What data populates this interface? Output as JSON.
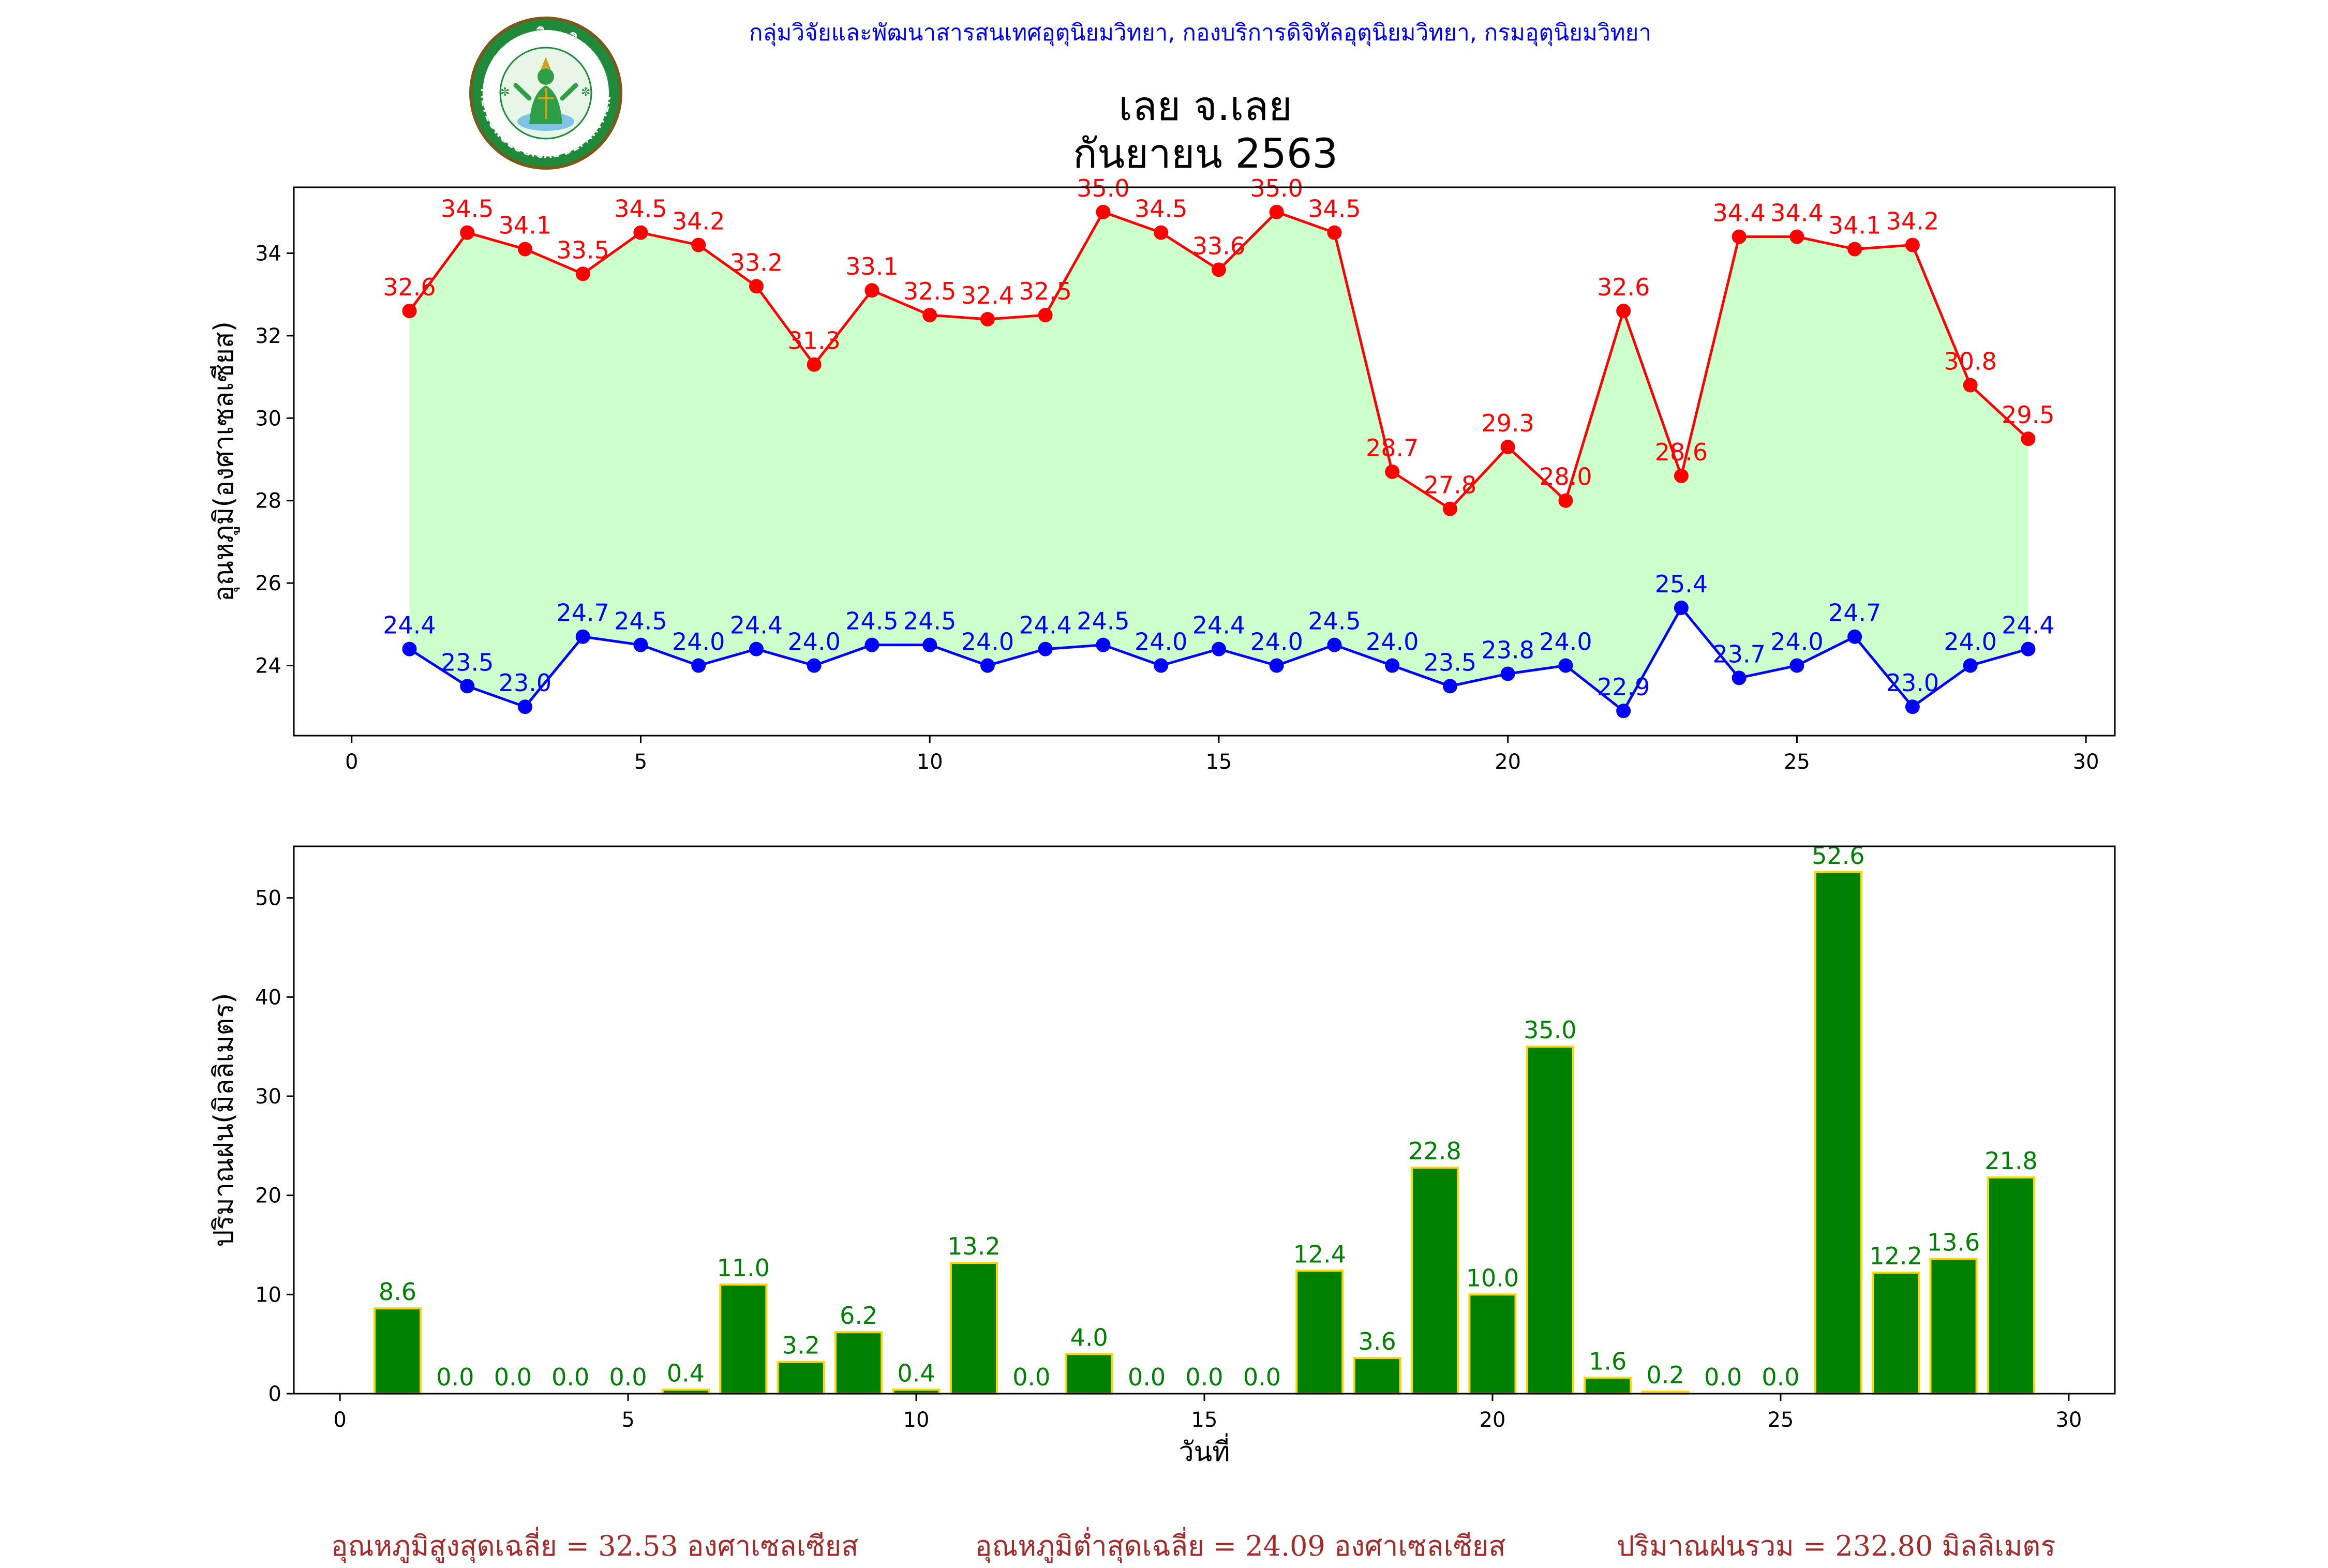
{
  "header": {
    "credit": "กลุ่มวิจัยและพัฒนาสารสนเทศอุตุนิยมวิทยา, กองบริการดิจิทัลอุตุนิยมวิทยา, กรมอุตุนิยมวิทยา",
    "title_line1": "เลย จ.เลย",
    "title_line2": "กันยายน 2563",
    "logo": {
      "top_text": "กรมอุตุนิยมวิทยา",
      "bottom_text": "METEOROLOGICAL DEPARTMENT"
    }
  },
  "chart_data": [
    {
      "type": "line",
      "ylabel": "อุณหภูมิ(องศาเซลเซียส)",
      "xlabel": "",
      "xlim": [
        -1,
        30.5
      ],
      "ylim": [
        22.3,
        35.6
      ],
      "xticks": [
        0,
        5,
        10,
        15,
        20,
        25,
        30
      ],
      "yticks": [
        24,
        26,
        28,
        30,
        32,
        34
      ],
      "x": [
        1,
        2,
        3,
        4,
        5,
        6,
        7,
        8,
        9,
        10,
        11,
        12,
        13,
        14,
        15,
        16,
        17,
        18,
        19,
        20,
        21,
        22,
        23,
        24,
        25,
        26,
        27,
        28,
        29
      ],
      "fill_between": {
        "color": "#ccffcc"
      },
      "series": [
        {
          "key": "max",
          "color": "#ff0000",
          "values": [
            32.6,
            34.5,
            34.1,
            33.5,
            34.5,
            34.2,
            33.2,
            31.3,
            33.1,
            32.5,
            32.4,
            32.5,
            35.0,
            34.5,
            33.6,
            35.0,
            34.5,
            28.7,
            27.8,
            29.3,
            28.0,
            32.6,
            28.6,
            34.4,
            34.4,
            34.1,
            34.2,
            30.8,
            29.5
          ]
        },
        {
          "key": "min",
          "color": "#0000ff",
          "values": [
            24.4,
            23.5,
            23.0,
            24.7,
            24.5,
            24.0,
            24.4,
            24.0,
            24.5,
            24.5,
            24.0,
            24.4,
            24.5,
            24.0,
            24.4,
            24.0,
            24.5,
            24.0,
            23.5,
            23.8,
            24.0,
            22.9,
            25.4,
            23.7,
            24.0,
            24.7,
            23.0,
            24.0,
            24.4
          ]
        }
      ]
    },
    {
      "type": "bar",
      "ylabel": "ปริมาณฝน(มิลลิเมตร)",
      "xlabel": "วันที่",
      "xlim": [
        -0.8,
        30.8
      ],
      "ylim": [
        0,
        55.2
      ],
      "xticks": [
        0,
        5,
        10,
        15,
        20,
        25,
        30
      ],
      "yticks": [
        0,
        10,
        20,
        30,
        40,
        50
      ],
      "bar_color": "#008000",
      "bar_edge_color": "#ffd700",
      "label_color": "#008000",
      "x": [
        1,
        2,
        3,
        4,
        5,
        6,
        7,
        8,
        9,
        10,
        11,
        12,
        13,
        14,
        15,
        16,
        17,
        18,
        19,
        20,
        21,
        22,
        23,
        24,
        25,
        26,
        27,
        28,
        29
      ],
      "values": [
        8.6,
        0.0,
        0.0,
        0.0,
        0.0,
        0.4,
        11.0,
        3.2,
        6.2,
        0.4,
        13.2,
        0.0,
        4.0,
        0.0,
        0.0,
        0.0,
        12.4,
        3.6,
        22.8,
        10.0,
        35.0,
        1.6,
        0.2,
        0.0,
        0.0,
        52.6,
        12.2,
        13.6,
        21.8
      ]
    }
  ],
  "summary": {
    "avg_max": "อุณหภูมิสูงสุดเฉลี่ย = 32.53 องศาเซลเซียส",
    "avg_min": "อุณหภูมิต่ำสุดเฉลี่ย = 24.09 องศาเซลเซียส",
    "rain_total": "ปริมาณฝนรวม = 232.80 มิลลิเมตร"
  }
}
